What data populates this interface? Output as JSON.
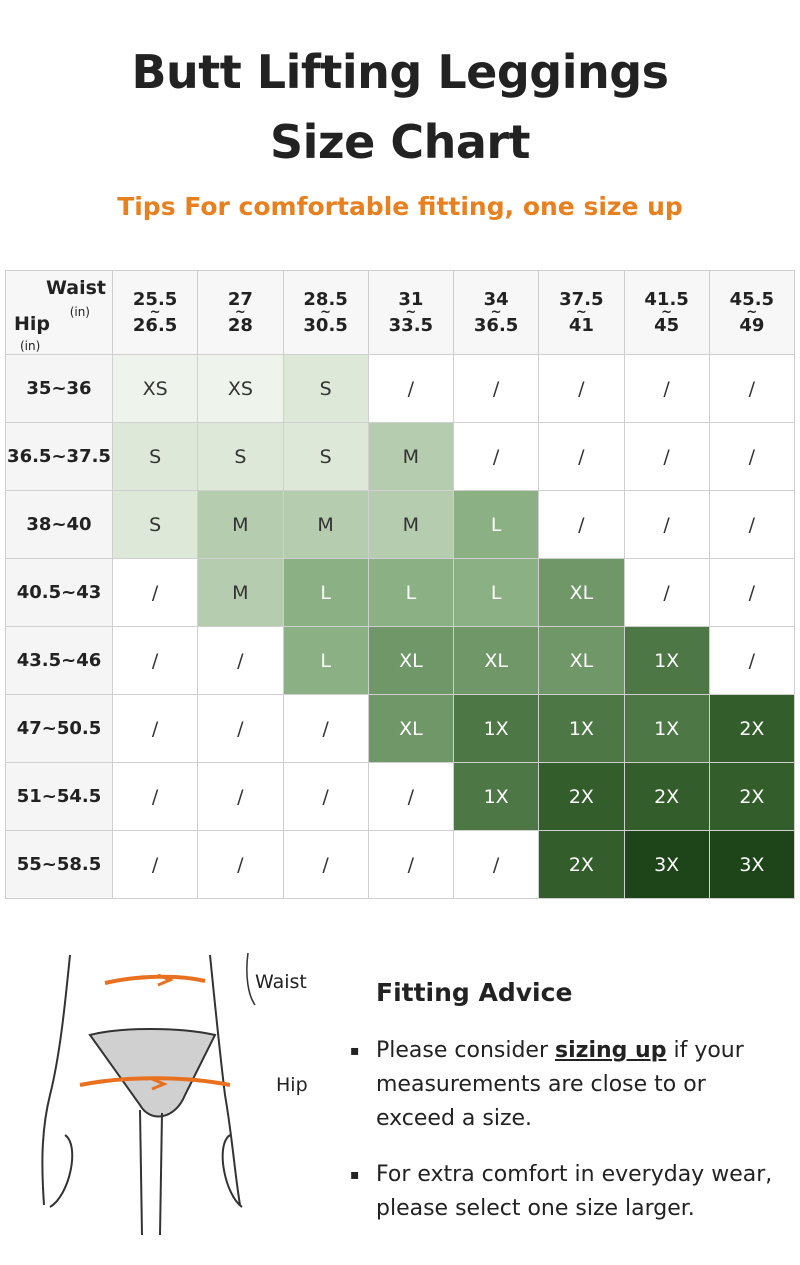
{
  "header": {
    "title_lines": [
      "Butt Lifting Leggings",
      "Size Chart"
    ],
    "tip": "Tips For comfortable fitting, one size up"
  },
  "table": {
    "corner": {
      "waist": "Waist",
      "waist_unit": "(in)",
      "hip": "Hip",
      "hip_unit": "(in)"
    },
    "columns": [
      [
        "25.5",
        "~",
        "26.5"
      ],
      [
        "27",
        "~",
        "28"
      ],
      [
        "28.5",
        "~",
        "30.5"
      ],
      [
        "31",
        "~",
        "33.5"
      ],
      [
        "34",
        "~",
        "36.5"
      ],
      [
        "37.5",
        "~",
        "41"
      ],
      [
        "41.5",
        "~",
        "45"
      ],
      [
        "45.5",
        "~",
        "49"
      ]
    ],
    "rows": [
      {
        "label": "35~36",
        "cells": [
          "XS",
          "XS",
          "S",
          "/",
          "/",
          "/",
          "/",
          "/"
        ]
      },
      {
        "label": "36.5~37.5",
        "cells": [
          "S",
          "S",
          "S",
          "M",
          "/",
          "/",
          "/",
          "/"
        ]
      },
      {
        "label": "38~40",
        "cells": [
          "S",
          "M",
          "M",
          "M",
          "L",
          "/",
          "/",
          "/"
        ]
      },
      {
        "label": "40.5~43",
        "cells": [
          "/",
          "M",
          "L",
          "L",
          "L",
          "XL",
          "/",
          "/"
        ]
      },
      {
        "label": "43.5~46",
        "cells": [
          "/",
          "/",
          "L",
          "XL",
          "XL",
          "XL",
          "1X",
          "/"
        ]
      },
      {
        "label": "47~50.5",
        "cells": [
          "/",
          "/",
          "/",
          "XL",
          "1X",
          "1X",
          "1X",
          "2X"
        ]
      },
      {
        "label": "51~54.5",
        "cells": [
          "/",
          "/",
          "/",
          "/",
          "1X",
          "2X",
          "2X",
          "2X"
        ]
      },
      {
        "label": "55~58.5",
        "cells": [
          "/",
          "/",
          "/",
          "/",
          "/",
          "2X",
          "3X",
          "3X"
        ]
      }
    ],
    "size_styles": {
      "/": {
        "bg": "#ffffff",
        "fg": "#333333"
      },
      "XS": {
        "bg": "#eef3ec",
        "fg": "#333333"
      },
      "S": {
        "bg": "#dde8d9",
        "fg": "#333333"
      },
      "M": {
        "bg": "#b6ccaf",
        "fg": "#333333"
      },
      "L": {
        "bg": "#8bb083",
        "fg": "#ffffff"
      },
      "XL": {
        "bg": "#6f9767",
        "fg": "#ffffff"
      },
      "1X": {
        "bg": "#4d7846",
        "fg": "#ffffff"
      },
      "2X": {
        "bg": "#335e2b",
        "fg": "#ffffff"
      },
      "3X": {
        "bg": "#1e4419",
        "fg": "#ffffff"
      }
    }
  },
  "figure": {
    "waist_label": "Waist",
    "hip_label": "Hip"
  },
  "advice": {
    "title": "Fitting Advice",
    "bullets": [
      {
        "before": "Please consider ",
        "emphasis": "sizing up",
        "after": " if your measurements are close to or exceed a size."
      },
      {
        "before": "For extra comfort in everyday wear, please select one size larger."
      }
    ]
  }
}
